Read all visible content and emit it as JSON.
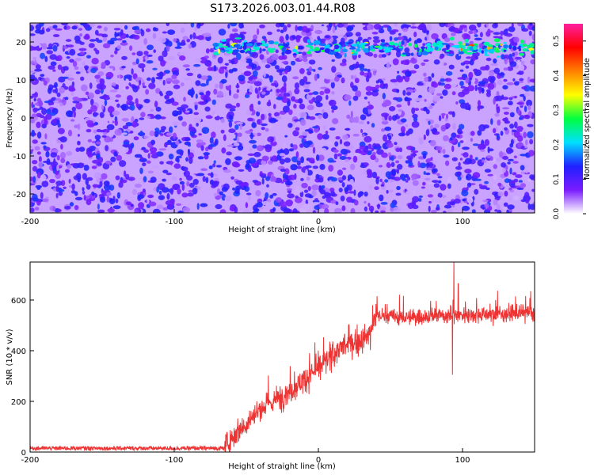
{
  "figure": {
    "title": "S173.2026.003.01.44.R08"
  },
  "chart_data": [
    {
      "type": "heatmap",
      "xlabel": "Height of straight line (km)",
      "ylabel": "Frequency (Hz)",
      "xlim": [
        -200,
        150
      ],
      "ylim": [
        -25,
        25
      ],
      "xticks": [
        -200,
        -100,
        0,
        100
      ],
      "yticks": [
        20,
        10,
        0,
        -10,
        -20
      ],
      "colorbar": {
        "label": "Normalized spectral amplitude",
        "range": [
          0,
          0.55
        ],
        "ticks": [
          "0.0",
          "0.1",
          "0.2",
          "0.3",
          "0.4",
          "0.5"
        ],
        "colors": [
          "#ffffff",
          "#7a1cff",
          "#2020ff",
          "#00e0ff",
          "#00ff40",
          "#ffff00",
          "#ff8000",
          "#ff0000",
          "#ff20a0"
        ]
      },
      "background_level": 0.08,
      "line_feature": {
        "frequency_hz": 18.5,
        "x_start_km": -75,
        "x_end_km": 150,
        "peak_amplitude": 0.45
      }
    },
    {
      "type": "line",
      "xlabel": "Height of straight line (km)",
      "ylabel": "SNR (10 * v/v)",
      "xlim": [
        -200,
        150
      ],
      "ylim": [
        0,
        750
      ],
      "xticks": [
        -200,
        -100,
        0,
        100
      ],
      "yticks": [
        0,
        200,
        400,
        600
      ],
      "line_color": "#ee3333",
      "trend_knots_x": [
        -200,
        -65,
        -60,
        -40,
        -20,
        0,
        15,
        35,
        40,
        60,
        90,
        150
      ],
      "trend_knots_y": [
        15,
        15,
        60,
        170,
        240,
        330,
        410,
        455,
        540,
        530,
        540,
        550
      ],
      "noise_before_onset": 8,
      "noise_after_onset": 45,
      "onset_km": -65,
      "spikes": [
        {
          "x": 94,
          "y": 750
        },
        {
          "x": 93,
          "y": 305
        },
        {
          "x": 97,
          "y": 665
        },
        {
          "x": 35,
          "y": 490
        }
      ]
    }
  ]
}
